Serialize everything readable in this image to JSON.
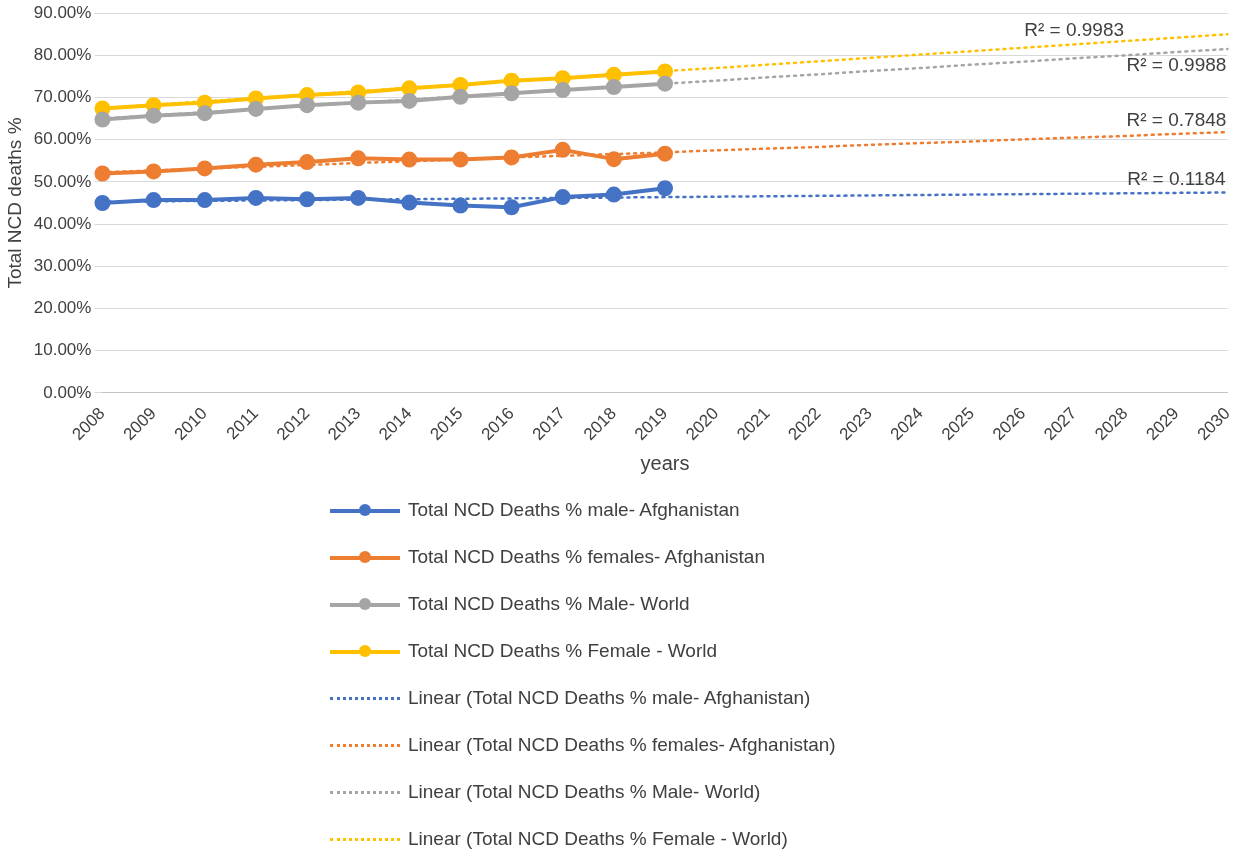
{
  "chart_data": {
    "type": "line",
    "xlabel": "years",
    "ylabel": "Total NCD deaths %",
    "categories": [
      "2008",
      "2009",
      "2010",
      "2011",
      "2012",
      "2013",
      "2014",
      "2015",
      "2016",
      "2017",
      "2018",
      "2019",
      "2020",
      "2021",
      "2022",
      "2023",
      "2024",
      "2025",
      "2026",
      "2027",
      "2028",
      "2029",
      "2030"
    ],
    "ylim": [
      0,
      90
    ],
    "yticks": [
      {
        "value": 0,
        "label": "0.00%"
      },
      {
        "value": 10,
        "label": "10.00%"
      },
      {
        "value": 20,
        "label": "20.00%"
      },
      {
        "value": 30,
        "label": "30.00%"
      },
      {
        "value": 40,
        "label": "40.00%"
      },
      {
        "value": 50,
        "label": "50.00%"
      },
      {
        "value": 60,
        "label": "60.00%"
      },
      {
        "value": 70,
        "label": "70.00%"
      },
      {
        "value": 80,
        "label": "80.00%"
      },
      {
        "value": 90,
        "label": "90.00%"
      }
    ],
    "grid": "y",
    "legend": "bottom",
    "marker": "circle",
    "line_style": "solid",
    "series": [
      {
        "name": "Total NCD Deaths  % male- Afghanistan",
        "color": "#4472c4",
        "values": [
          45.0,
          45.7,
          45.7,
          46.2,
          45.9,
          46.2,
          45.1,
          44.4,
          44.0,
          46.4,
          47.0,
          48.5,
          null,
          null,
          null,
          null,
          null,
          null,
          null,
          null,
          null,
          null,
          null
        ]
      },
      {
        "name": "Total NCD Deaths  % females- Afghanistan",
        "color": "#ed7d31",
        "values": [
          52.0,
          52.5,
          53.2,
          54.1,
          54.7,
          55.6,
          55.3,
          55.3,
          55.8,
          57.6,
          55.4,
          56.7,
          null,
          null,
          null,
          null,
          null,
          null,
          null,
          null,
          null,
          null,
          null
        ]
      },
      {
        "name": "Total NCD Deaths  % Male- World",
        "color": "#a5a5a5",
        "values": [
          64.8,
          65.7,
          66.3,
          67.3,
          68.2,
          68.8,
          69.2,
          70.2,
          71.0,
          71.8,
          72.5,
          73.3,
          null,
          null,
          null,
          null,
          null,
          null,
          null,
          null,
          null,
          null,
          null
        ]
      },
      {
        "name": "Total NCD Deaths  % Female - World",
        "color": "#ffc000",
        "values": [
          67.4,
          68.2,
          68.8,
          69.8,
          70.6,
          71.2,
          72.2,
          73.0,
          74.0,
          74.6,
          75.4,
          76.2,
          null,
          null,
          null,
          null,
          null,
          null,
          null,
          null,
          null,
          null,
          null
        ]
      },
      {
        "name": "Linear (Total NCD Deaths  % male- Afghanistan)",
        "color": "#4472c4",
        "type": "line",
        "line_style": "dotted",
        "marker": "none",
        "values": [
          45.3,
          45.4,
          45.5,
          45.6,
          45.7,
          45.8,
          45.9,
          46.0,
          46.1,
          46.2,
          46.3,
          46.4,
          46.5,
          46.6,
          46.7,
          46.8,
          46.9,
          47.0,
          47.1,
          47.2,
          47.3,
          47.4,
          47.5
        ]
      },
      {
        "name": "Linear (Total NCD Deaths  % females- Afghanistan)",
        "color": "#ed7d31",
        "type": "line",
        "line_style": "dotted",
        "marker": "none",
        "values": [
          52.3,
          52.7,
          53.2,
          53.6,
          54.0,
          54.5,
          54.9,
          55.3,
          55.8,
          56.2,
          56.6,
          57.0,
          57.5,
          57.9,
          58.3,
          58.8,
          59.2,
          59.6,
          60.1,
          60.5,
          60.9,
          61.4,
          61.8
        ]
      },
      {
        "name": "Linear (Total NCD Deaths  % Male- World)",
        "color": "#a5a5a5",
        "type": "line",
        "line_style": "dotted",
        "marker": "none",
        "values": [
          65.0,
          65.8,
          66.5,
          67.3,
          68.0,
          68.8,
          69.5,
          70.3,
          71.0,
          71.8,
          72.5,
          73.3,
          74.0,
          74.8,
          75.5,
          76.3,
          77.0,
          77.8,
          78.5,
          79.3,
          80.0,
          80.8,
          81.5
        ]
      },
      {
        "name": "Linear (Total NCD Deaths  % Female - World)",
        "color": "#ffc000",
        "type": "line",
        "line_style": "dotted",
        "marker": "none",
        "values": [
          67.5,
          68.3,
          69.1,
          69.9,
          70.7,
          71.5,
          72.3,
          73.1,
          73.9,
          74.7,
          75.5,
          76.3,
          77.0,
          77.8,
          78.6,
          79.4,
          80.2,
          81.0,
          81.8,
          82.6,
          83.4,
          84.2,
          85.0
        ]
      }
    ],
    "annotations": [
      {
        "text": "R² = 0.1184",
        "x": "2029",
        "y": 47.4
      },
      {
        "text": "R² = 0.7848",
        "x": "2029",
        "y": 61.4
      },
      {
        "text": "R² = 0.9988",
        "x": "2029",
        "y": 80.8
      },
      {
        "text": "R² = 0.9983",
        "x": "2027",
        "y": 82.6
      }
    ]
  }
}
